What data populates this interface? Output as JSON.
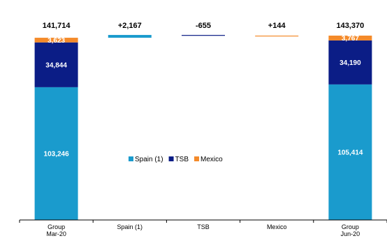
{
  "chart_data": {
    "type": "bar",
    "subtype": "waterfall",
    "categories": [
      [
        "Group",
        "Mar-20"
      ],
      [
        "Spain (1)"
      ],
      [
        "TSB"
      ],
      [
        "Mexico"
      ],
      [
        "Group",
        "Jun-20"
      ]
    ],
    "series": [
      {
        "name": "Spain (1)",
        "color": "#1a9bcd"
      },
      {
        "name": "TSB",
        "color": "#0b1d86"
      },
      {
        "name": "Mexico",
        "color": "#f48a2a"
      }
    ],
    "stacks": [
      {
        "category_index": 0,
        "total": 141714,
        "total_label": "141,714",
        "segments": [
          {
            "series": 0,
            "value": 103246,
            "label": "103,246"
          },
          {
            "series": 1,
            "value": 34844,
            "label": "34,844"
          },
          {
            "series": 2,
            "value": 3623,
            "label": "3,623"
          }
        ]
      },
      {
        "category_index": 4,
        "total": 143370,
        "total_label": "143,370",
        "segments": [
          {
            "series": 0,
            "value": 105414,
            "label": "105,414"
          },
          {
            "series": 1,
            "value": 34190,
            "label": "34,190"
          },
          {
            "series": 2,
            "value": 3767,
            "label": "3,767"
          }
        ]
      }
    ],
    "changes": [
      {
        "category_index": 1,
        "series": 0,
        "value": 2167,
        "label": "+2,167"
      },
      {
        "category_index": 2,
        "series": 1,
        "value": -655,
        "label": "-655"
      },
      {
        "category_index": 3,
        "series": 2,
        "value": 144,
        "label": "+144"
      }
    ],
    "ylim": [
      0,
      145000
    ],
    "grid": false,
    "legend_position": "center"
  }
}
